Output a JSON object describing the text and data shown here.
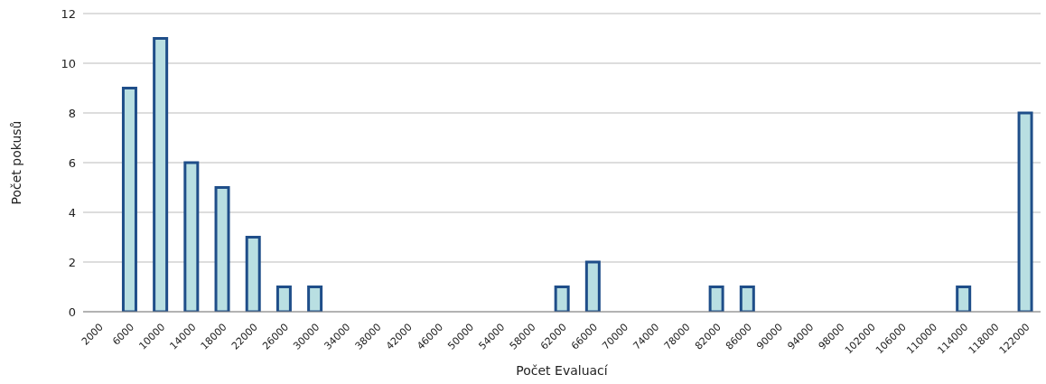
{
  "chart_data": {
    "type": "bar",
    "xlabel": "Počet Evaluací",
    "ylabel": "Počet pokusů",
    "categories": [
      "2000",
      "6000",
      "10000",
      "14000",
      "18000",
      "22000",
      "26000",
      "30000",
      "34000",
      "38000",
      "42000",
      "46000",
      "50000",
      "54000",
      "58000",
      "62000",
      "66000",
      "70000",
      "74000",
      "78000",
      "82000",
      "86000",
      "90000",
      "94000",
      "98000",
      "102000",
      "106000",
      "110000",
      "114000",
      "118000",
      "122000"
    ],
    "series": [
      {
        "color": "#b9dfe2",
        "values": [
          0,
          9,
          11,
          6,
          5,
          3,
          1,
          1,
          0,
          0,
          0,
          0,
          0,
          0,
          0,
          1,
          2,
          0,
          0,
          0,
          1,
          1,
          0,
          0,
          0,
          0,
          0,
          0,
          1,
          0,
          8
        ]
      }
    ],
    "ylim": [
      0,
      12
    ],
    "yticks": [
      0,
      2,
      4,
      6,
      8,
      10,
      12
    ],
    "grid": "y"
  }
}
